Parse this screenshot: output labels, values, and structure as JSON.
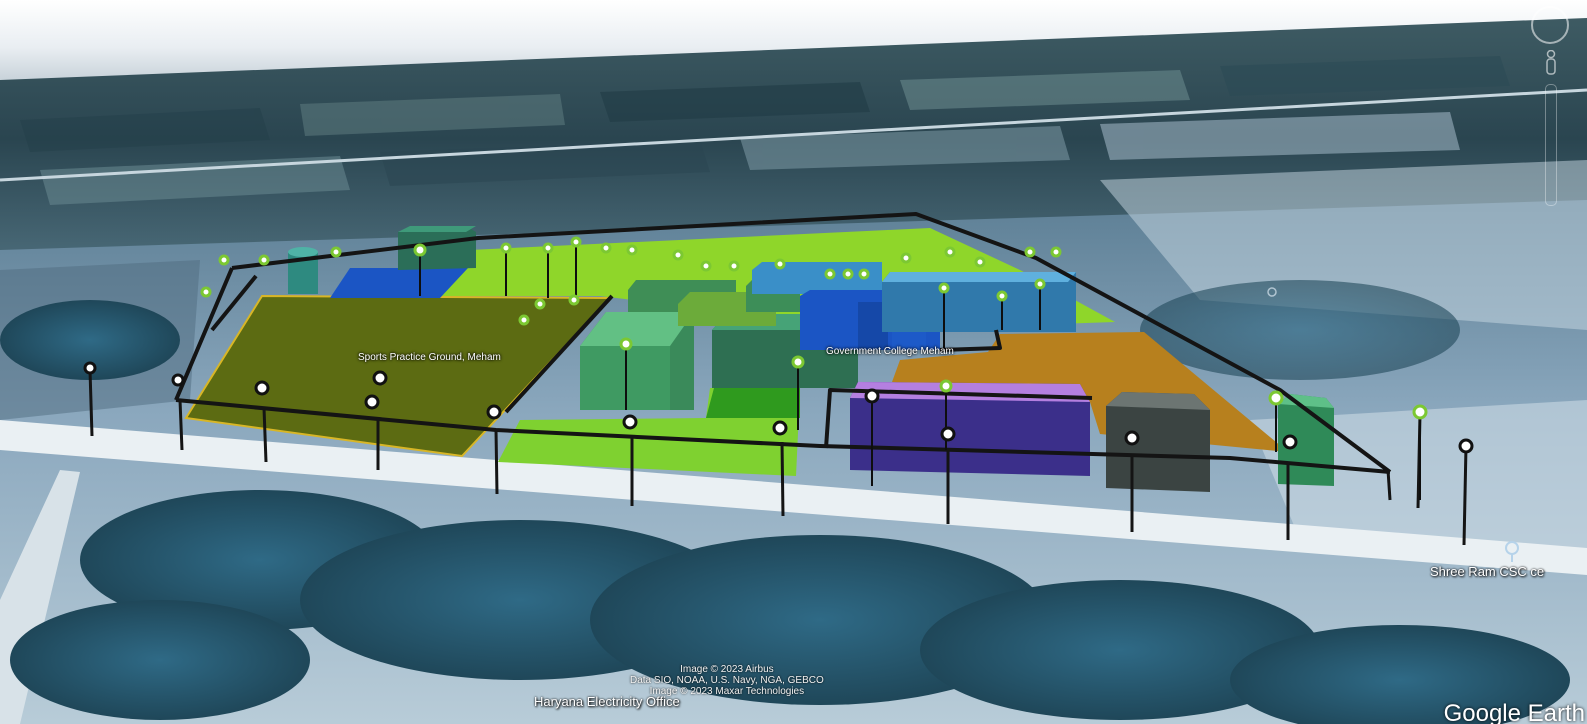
{
  "app": {
    "name": "Google Earth",
    "brand_text": "Google Earth"
  },
  "labels": {
    "sports_ground": "Sports Practice Ground, Meham",
    "college": "Government College Meham",
    "csc_center": "Shree Ram CSC ce",
    "electricity_office": "Haryana Electricity Office"
  },
  "attribution": {
    "line1": "Image © 2023 Airbus",
    "line2": "Data SIO, NOAA, U.S. Navy, NGA, GEBCO",
    "line3": "Image © 2023 Maxar Technologies"
  },
  "controls": {
    "compass_icon": "compass-ring-icon",
    "streetview_icon": "pegman-icon",
    "zoom_icon": "zoom-slider-icon"
  },
  "colors": {
    "sports_ground": "#5c6b12",
    "lawn": "#8fd62a",
    "green_block": "#3f9a5e",
    "teal_block": "#2e6f52",
    "blue_block": "#1b55c4",
    "light_blue_block": "#3a8fc8",
    "purple_block": "#3b2f8a",
    "purple_roof": "#b47fe0",
    "orange_area": "#b7801e",
    "grey_block": "#3b4442",
    "boundary": "#141414",
    "marker_ring": "#7cc832"
  }
}
